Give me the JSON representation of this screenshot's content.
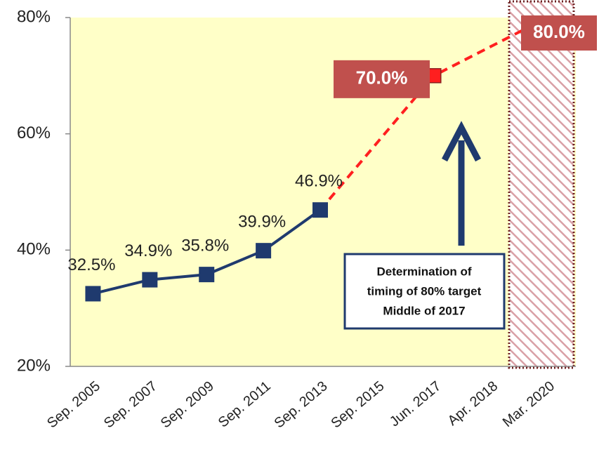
{
  "chart_data": {
    "type": "line",
    "categories": [
      "Sep. 2005",
      "Sep. 2007",
      "Sep. 2009",
      "Sep. 2011",
      "Sep. 2013",
      "Sep. 2015",
      "Jun. 2017",
      "Apr. 2018",
      "Mar. 2020"
    ],
    "series": [
      {
        "color": "#1f3a6e",
        "values": [
          32.5,
          34.9,
          35.8,
          39.9,
          46.9,
          null,
          null,
          null,
          null
        ],
        "value_labels": [
          "32.5%",
          "34.9%",
          "35.8%",
          "39.9%",
          "46.9%",
          null,
          null,
          null,
          null
        ]
      },
      {
        "color": "#ff1f1f",
        "values": [
          null,
          null,
          null,
          null,
          null,
          null,
          70.0,
          null,
          80.0
        ],
        "value_labels": [
          null,
          null,
          null,
          null,
          null,
          null,
          "70.0%",
          null,
          "80.0%"
        ]
      }
    ],
    "ylim": [
      20,
      80
    ],
    "yticks": [
      {
        "value": 20,
        "label": "20%"
      },
      {
        "value": 40,
        "label": "40%"
      },
      {
        "value": 60,
        "label": "60%"
      },
      {
        "value": 80,
        "label": "80%"
      }
    ],
    "annotation": [
      "Determination of",
      "timing of 80% target",
      "Middle of 2017"
    ]
  }
}
